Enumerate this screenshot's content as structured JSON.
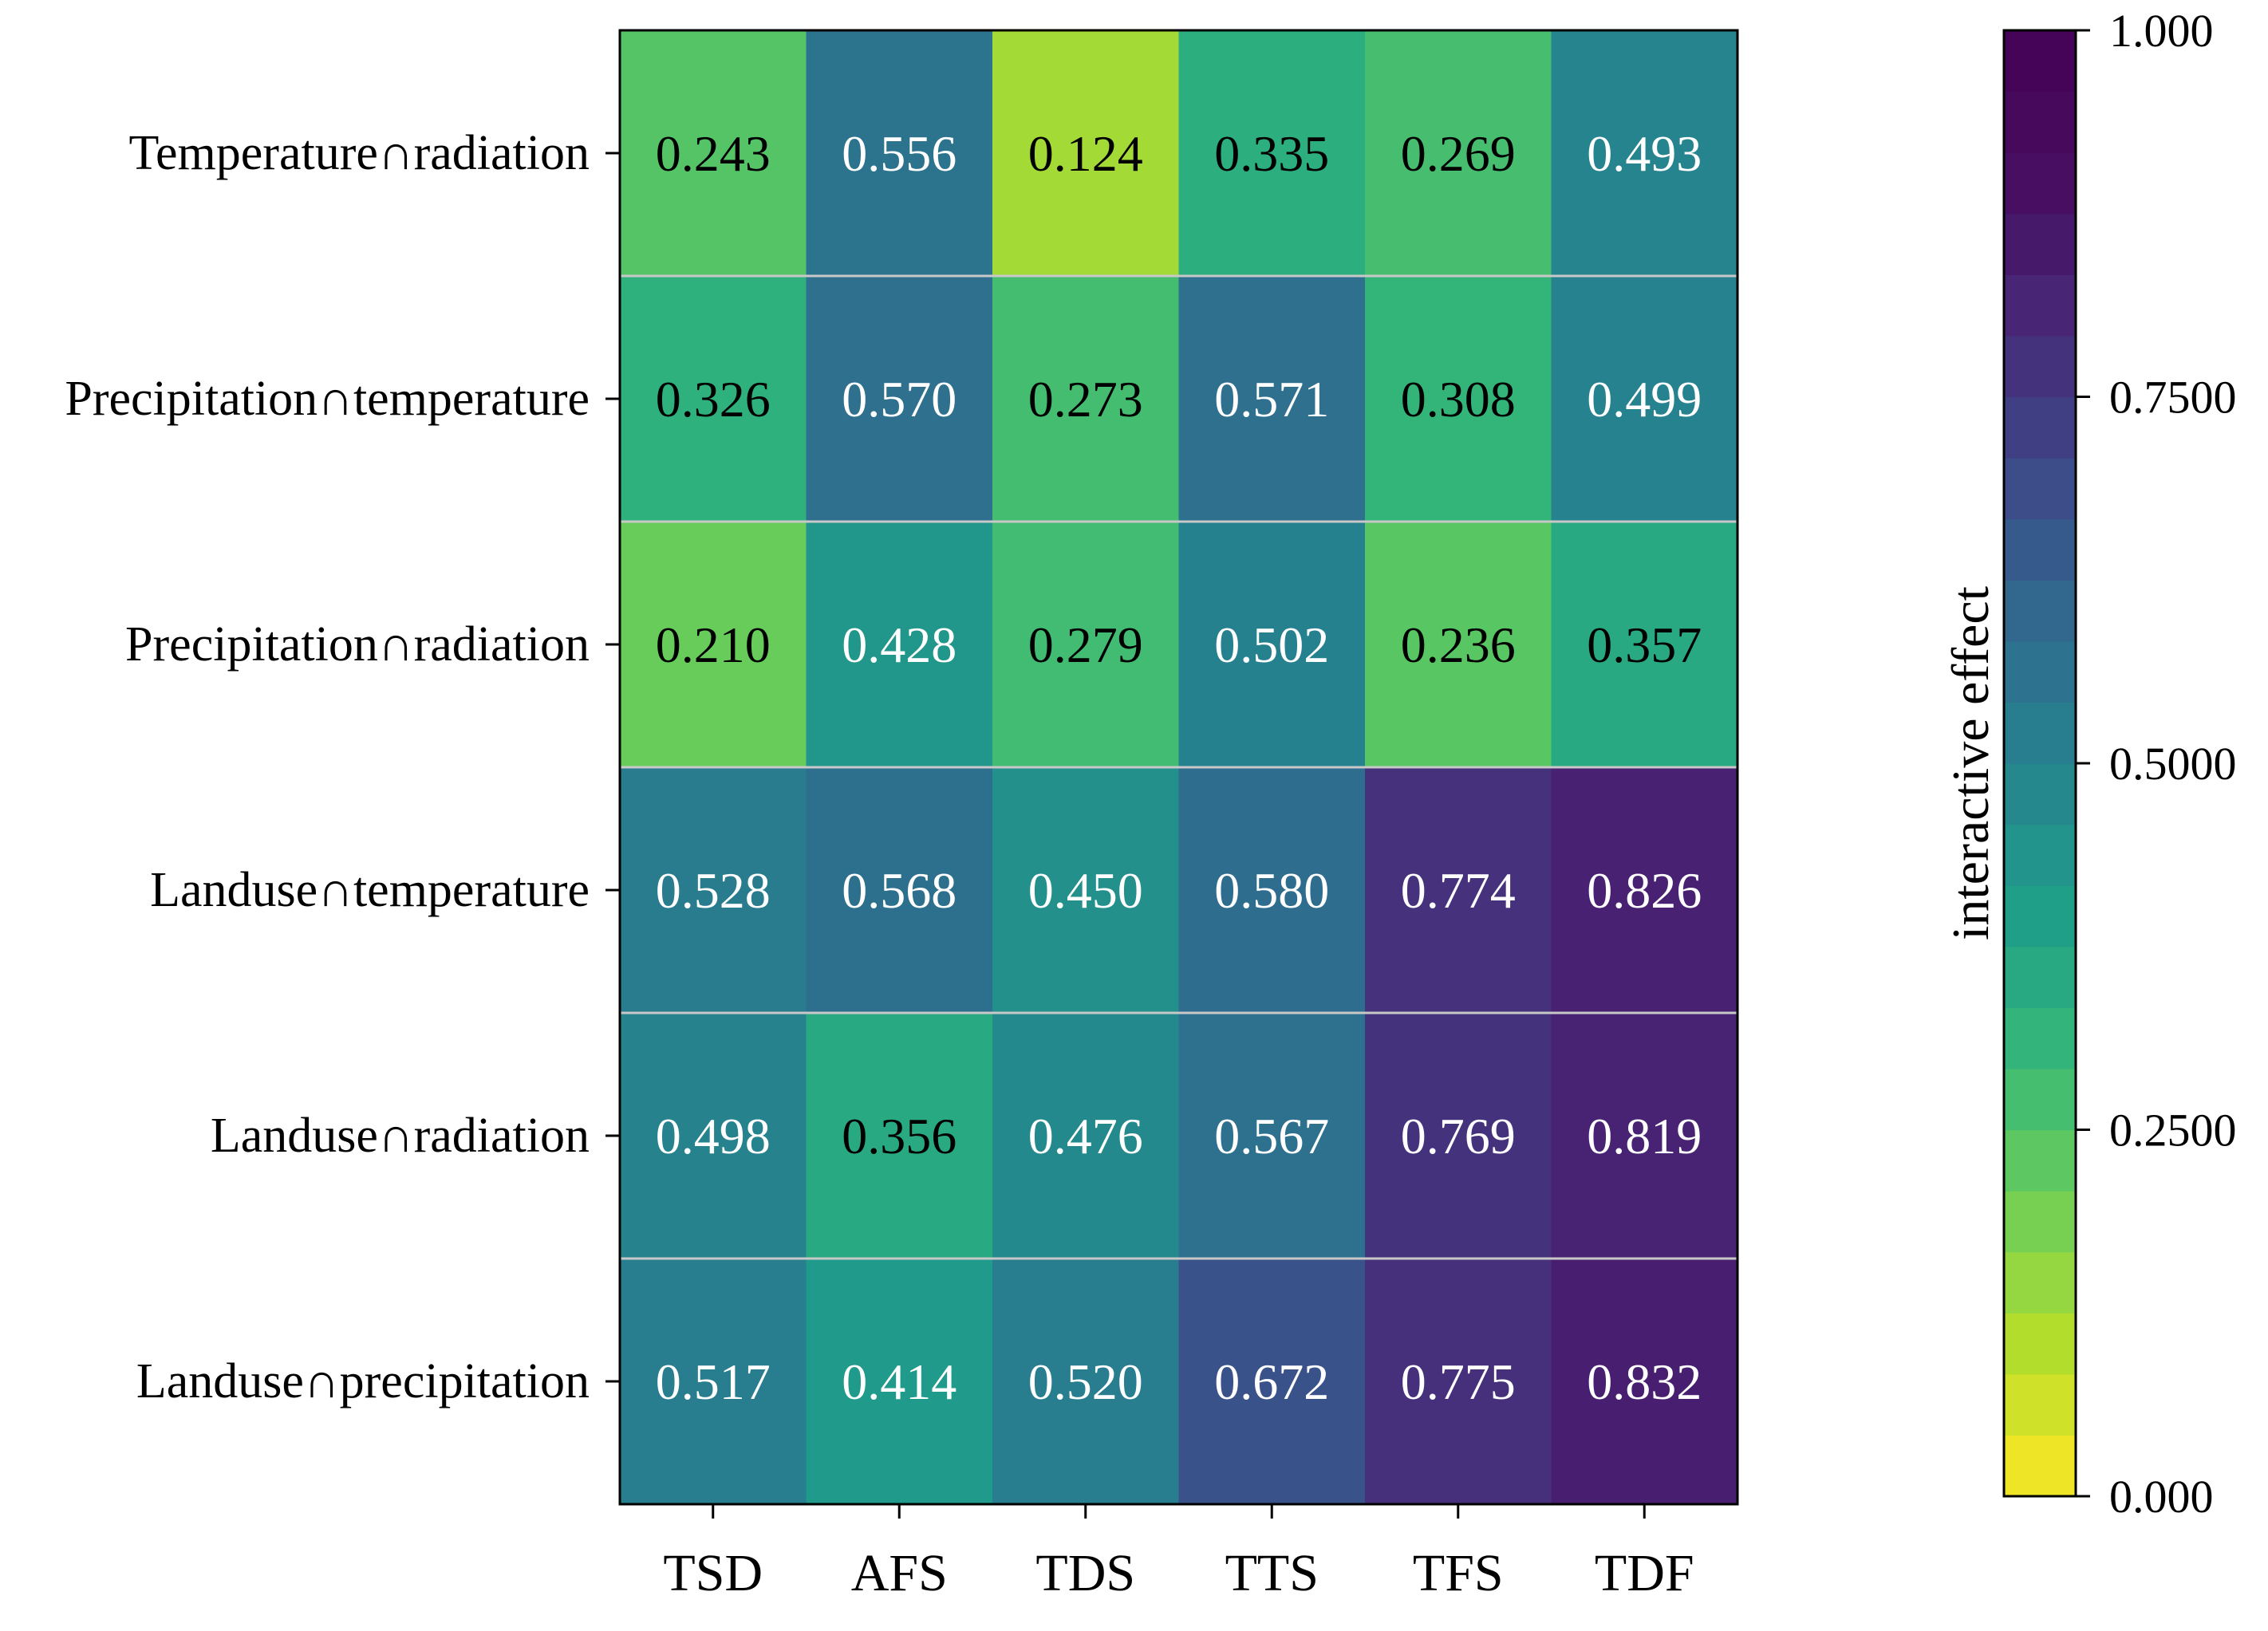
{
  "chart_data": {
    "type": "heatmap",
    "title": "",
    "rows": [
      "Temperature∩radiation",
      "Precipitation∩temperature",
      "Precipitation∩radiation",
      "Landuse∩temperature",
      "Landuse∩radiation",
      "Landuse∩precipitation"
    ],
    "columns": [
      "TSD",
      "AFS",
      "TDS",
      "TTS",
      "TFS",
      "TDF"
    ],
    "values": [
      [
        0.243,
        0.556,
        0.124,
        0.335,
        0.269,
        0.493
      ],
      [
        0.326,
        0.57,
        0.273,
        0.571,
        0.308,
        0.499
      ],
      [
        0.21,
        0.428,
        0.279,
        0.502,
        0.236,
        0.357
      ],
      [
        0.528,
        0.568,
        0.45,
        0.58,
        0.774,
        0.826
      ],
      [
        0.498,
        0.356,
        0.476,
        0.567,
        0.769,
        0.819
      ],
      [
        0.517,
        0.414,
        0.52,
        0.672,
        0.775,
        0.832
      ]
    ],
    "value_labels": [
      [
        "0.243",
        "0.556",
        "0.124",
        "0.335",
        "0.269",
        "0.493"
      ],
      [
        "0.326",
        "0.570",
        "0.273",
        "0.571",
        "0.308",
        "0.499"
      ],
      [
        "0.210",
        "0.428",
        "0.279",
        "0.502",
        "0.236",
        "0.357"
      ],
      [
        "0.528",
        "0.568",
        "0.450",
        "0.580",
        "0.774",
        "0.826"
      ],
      [
        "0.498",
        "0.356",
        "0.476",
        "0.567",
        "0.769",
        "0.819"
      ],
      [
        "0.517",
        "0.414",
        "0.520",
        "0.672",
        "0.775",
        "0.832"
      ]
    ],
    "colorbar": {
      "title": "interactive effect",
      "range": [
        0,
        1
      ],
      "tick_values": [
        0,
        0.25,
        0.5,
        0.75,
        1
      ],
      "tick_labels": [
        "0.000",
        "0.2500",
        "0.5000",
        "0.7500",
        "1.000"
      ],
      "colormap": "viridis (reversed)",
      "steps": 24
    },
    "grid": false,
    "legend": "right"
  }
}
